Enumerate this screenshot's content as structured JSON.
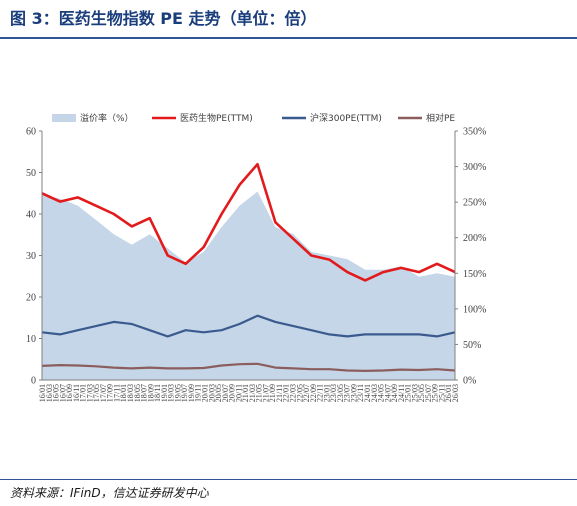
{
  "figure": {
    "title": "图 3：医药生物指数 PE 走势（单位：倍）",
    "source": "资料来源：IFinD，信达证券研发中心"
  },
  "chart_data": {
    "type": "line",
    "left_axis": {
      "ylim": [
        0,
        60
      ],
      "ticks": [
        "0",
        "10",
        "20",
        "30",
        "40",
        "50",
        "60"
      ]
    },
    "right_axis": {
      "ylim": [
        0,
        350
      ],
      "ticks": [
        "0%",
        "50%",
        "100%",
        "150%",
        "200%",
        "250%",
        "300%",
        "350%"
      ]
    },
    "x": [
      "2016-01",
      "2016-06",
      "2016-11",
      "2017-04",
      "2017-09",
      "2018-02",
      "2018-07",
      "2018-12",
      "2019-05",
      "2019-10",
      "2020-03",
      "2020-08",
      "2021-01",
      "2021-06",
      "2021-11",
      "2022-04",
      "2022-09",
      "2023-02",
      "2023-07",
      "2023-12",
      "2024-05",
      "2024-10",
      "2025-03",
      "2025-08"
    ],
    "x_tick_labels": [
      "16/01",
      "16/03",
      "16/05",
      "16/07",
      "16/09",
      "16/11",
      "17/01",
      "17/03",
      "17/05",
      "17/07",
      "17/09",
      "17/11",
      "18/01",
      "18/03",
      "18/05",
      "18/07",
      "18/09",
      "18/11",
      "19/01",
      "19/03",
      "19/05",
      "19/07",
      "19/09",
      "19/11",
      "20/01",
      "20/03",
      "20/05",
      "20/07",
      "20/09",
      "20/11",
      "21/01",
      "21/03",
      "21/05",
      "21/07",
      "21/09",
      "21/11",
      "22/01",
      "22/03",
      "22/05",
      "22/07",
      "22/09",
      "22/11",
      "23/01",
      "23/03",
      "23/05",
      "23/07",
      "23/09",
      "23/11",
      "24/01",
      "24/03",
      "24/05",
      "24/07",
      "24/09",
      "24/11",
      "25/01",
      "25/03",
      "25/05",
      "25/07",
      "25/09",
      "25/11",
      "26/01",
      "26/03"
    ],
    "series": [
      {
        "name": "溢价率（%）",
        "axis": "right",
        "type": "area",
        "color": "#c5d6e8",
        "values": [
          260,
          255,
          245,
          225,
          205,
          190,
          205,
          185,
          165,
          180,
          215,
          245,
          265,
          215,
          205,
          180,
          175,
          170,
          155,
          155,
          160,
          145,
          150,
          145
        ]
      },
      {
        "name": "医药生物PE(TTM)",
        "axis": "left",
        "type": "line",
        "color": "#e31a1c",
        "values": [
          45,
          43,
          44,
          42,
          40,
          37,
          39,
          30,
          28,
          32,
          40,
          47,
          52,
          38,
          34,
          30,
          29,
          26,
          24,
          26,
          27,
          26,
          28,
          26
        ]
      },
      {
        "name": "沪深300PE(TTM)",
        "axis": "left",
        "type": "line",
        "color": "#3b5b8f",
        "values": [
          11.5,
          11.0,
          12.0,
          13.0,
          14.0,
          13.5,
          12.0,
          10.5,
          12.0,
          11.5,
          12.0,
          13.5,
          15.5,
          14.0,
          13.0,
          12.0,
          11.0,
          10.5,
          11.0,
          11.0,
          11.0,
          11.0,
          10.5,
          11.5
        ]
      },
      {
        "name": "相对PE",
        "axis": "left",
        "type": "line",
        "color": "#8b5e5e",
        "values": [
          3.4,
          3.6,
          3.5,
          3.3,
          3.0,
          2.8,
          3.0,
          2.8,
          2.8,
          2.9,
          3.5,
          3.8,
          3.9,
          3.0,
          2.8,
          2.6,
          2.6,
          2.3,
          2.2,
          2.3,
          2.5,
          2.4,
          2.6,
          2.3
        ]
      }
    ],
    "legend_position": "top"
  }
}
